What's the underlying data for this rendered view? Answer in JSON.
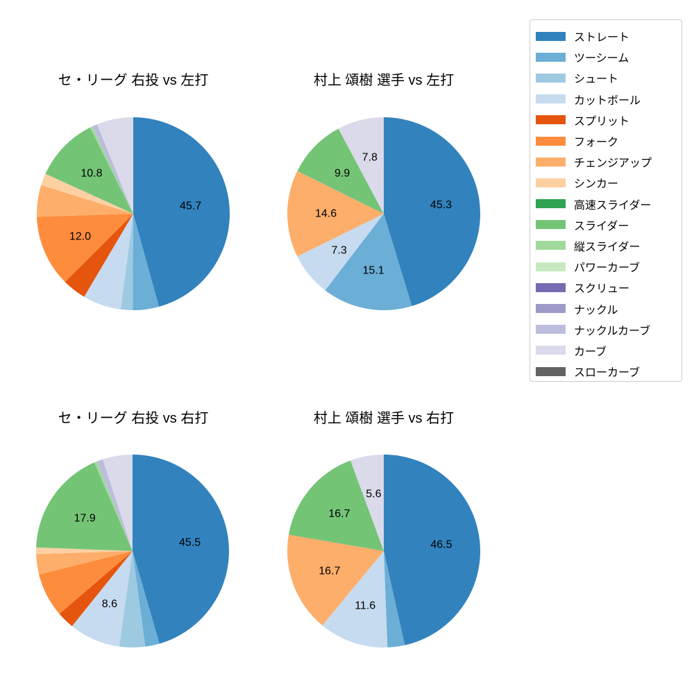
{
  "page": {
    "background": "#ffffff"
  },
  "legend": {
    "position": "right",
    "items": [
      {
        "label": "ストレート",
        "color": "#3182bd"
      },
      {
        "label": "ツーシーム",
        "color": "#6baed6"
      },
      {
        "label": "シュート",
        "color": "#9ecae1"
      },
      {
        "label": "カットボール",
        "color": "#c6dbef"
      },
      {
        "label": "スプリット",
        "color": "#e6550d"
      },
      {
        "label": "フォーク",
        "color": "#fd8d3c"
      },
      {
        "label": "チェンジアップ",
        "color": "#fdae6b"
      },
      {
        "label": "シンカー",
        "color": "#fdd0a2"
      },
      {
        "label": "高速スライダー",
        "color": "#31a354"
      },
      {
        "label": "スライダー",
        "color": "#74c476"
      },
      {
        "label": "縦スライダー",
        "color": "#a1d99b"
      },
      {
        "label": "パワーカーブ",
        "color": "#c7e9c0"
      },
      {
        "label": "スクリュー",
        "color": "#756bb1"
      },
      {
        "label": "ナックル",
        "color": "#9e9ac8"
      },
      {
        "label": "ナックルカーブ",
        "color": "#bcbddc"
      },
      {
        "label": "カーブ",
        "color": "#dadaeb"
      },
      {
        "label": "スローカーブ",
        "color": "#636363"
      }
    ]
  },
  "chart_data": [
    {
      "type": "pie",
      "title": "セ・リーグ 右投 vs 左打",
      "start_angle": 90,
      "direction": "clockwise",
      "unit": "percent",
      "label_distance": 0.6,
      "slices": [
        {
          "name": "ストレート",
          "value": 45.7,
          "label": "45.7"
        },
        {
          "name": "ツーシーム",
          "value": 4.4,
          "label": null
        },
        {
          "name": "シュート",
          "value": 2.0,
          "label": null
        },
        {
          "name": "カットボール",
          "value": 6.4,
          "label": null
        },
        {
          "name": "スプリット",
          "value": 4.0,
          "label": null
        },
        {
          "name": "フォーク",
          "value": 12.0,
          "label": "12.0"
        },
        {
          "name": "チェンジアップ",
          "value": 5.3,
          "label": null
        },
        {
          "name": "シンカー",
          "value": 2.0,
          "label": null
        },
        {
          "name": "スライダー",
          "value": 10.8,
          "label": "10.8"
        },
        {
          "name": "縦スライダー",
          "value": 0.4,
          "label": null
        },
        {
          "name": "ナックルカーブ",
          "value": 0.9,
          "label": null
        },
        {
          "name": "カーブ",
          "value": 6.1,
          "label": null
        }
      ]
    },
    {
      "type": "pie",
      "title": "村上 頌樹 選手 vs 左打",
      "start_angle": 90,
      "direction": "clockwise",
      "unit": "percent",
      "label_distance": 0.6,
      "slices": [
        {
          "name": "ストレート",
          "value": 45.3,
          "label": "45.3"
        },
        {
          "name": "ツーシーム",
          "value": 15.1,
          "label": "15.1"
        },
        {
          "name": "カットボール",
          "value": 7.3,
          "label": "7.3"
        },
        {
          "name": "チェンジアップ",
          "value": 14.6,
          "label": "14.6"
        },
        {
          "name": "スライダー",
          "value": 9.9,
          "label": "9.9"
        },
        {
          "name": "カーブ",
          "value": 7.8,
          "label": "7.8"
        }
      ]
    },
    {
      "type": "pie",
      "title": "セ・リーグ 右投 vs 右打",
      "start_angle": 90,
      "direction": "clockwise",
      "unit": "percent",
      "label_distance": 0.6,
      "slices": [
        {
          "name": "ストレート",
          "value": 45.5,
          "label": "45.5"
        },
        {
          "name": "ツーシーム",
          "value": 2.4,
          "label": null
        },
        {
          "name": "シュート",
          "value": 4.3,
          "label": null
        },
        {
          "name": "カットボール",
          "value": 8.6,
          "label": "8.6"
        },
        {
          "name": "スプリット",
          "value": 2.9,
          "label": null
        },
        {
          "name": "フォーク",
          "value": 7.4,
          "label": null
        },
        {
          "name": "チェンジアップ",
          "value": 3.4,
          "label": null
        },
        {
          "name": "シンカー",
          "value": 1.1,
          "label": null
        },
        {
          "name": "スライダー",
          "value": 17.9,
          "label": "17.9"
        },
        {
          "name": "縦スライダー",
          "value": 0.5,
          "label": null
        },
        {
          "name": "ナックルカーブ",
          "value": 1.0,
          "label": null
        },
        {
          "name": "カーブ",
          "value": 5.0,
          "label": null
        }
      ]
    },
    {
      "type": "pie",
      "title": "村上 頌樹 選手 vs 右打",
      "start_angle": 90,
      "direction": "clockwise",
      "unit": "percent",
      "label_distance": 0.6,
      "slices": [
        {
          "name": "ストレート",
          "value": 46.5,
          "label": "46.5"
        },
        {
          "name": "ツーシーム",
          "value": 2.9,
          "label": null
        },
        {
          "name": "カットボール",
          "value": 11.6,
          "label": "11.6"
        },
        {
          "name": "チェンジアップ",
          "value": 16.7,
          "label": "16.7"
        },
        {
          "name": "スライダー",
          "value": 16.7,
          "label": "16.7"
        },
        {
          "name": "カーブ",
          "value": 5.6,
          "label": "5.6"
        }
      ]
    }
  ]
}
